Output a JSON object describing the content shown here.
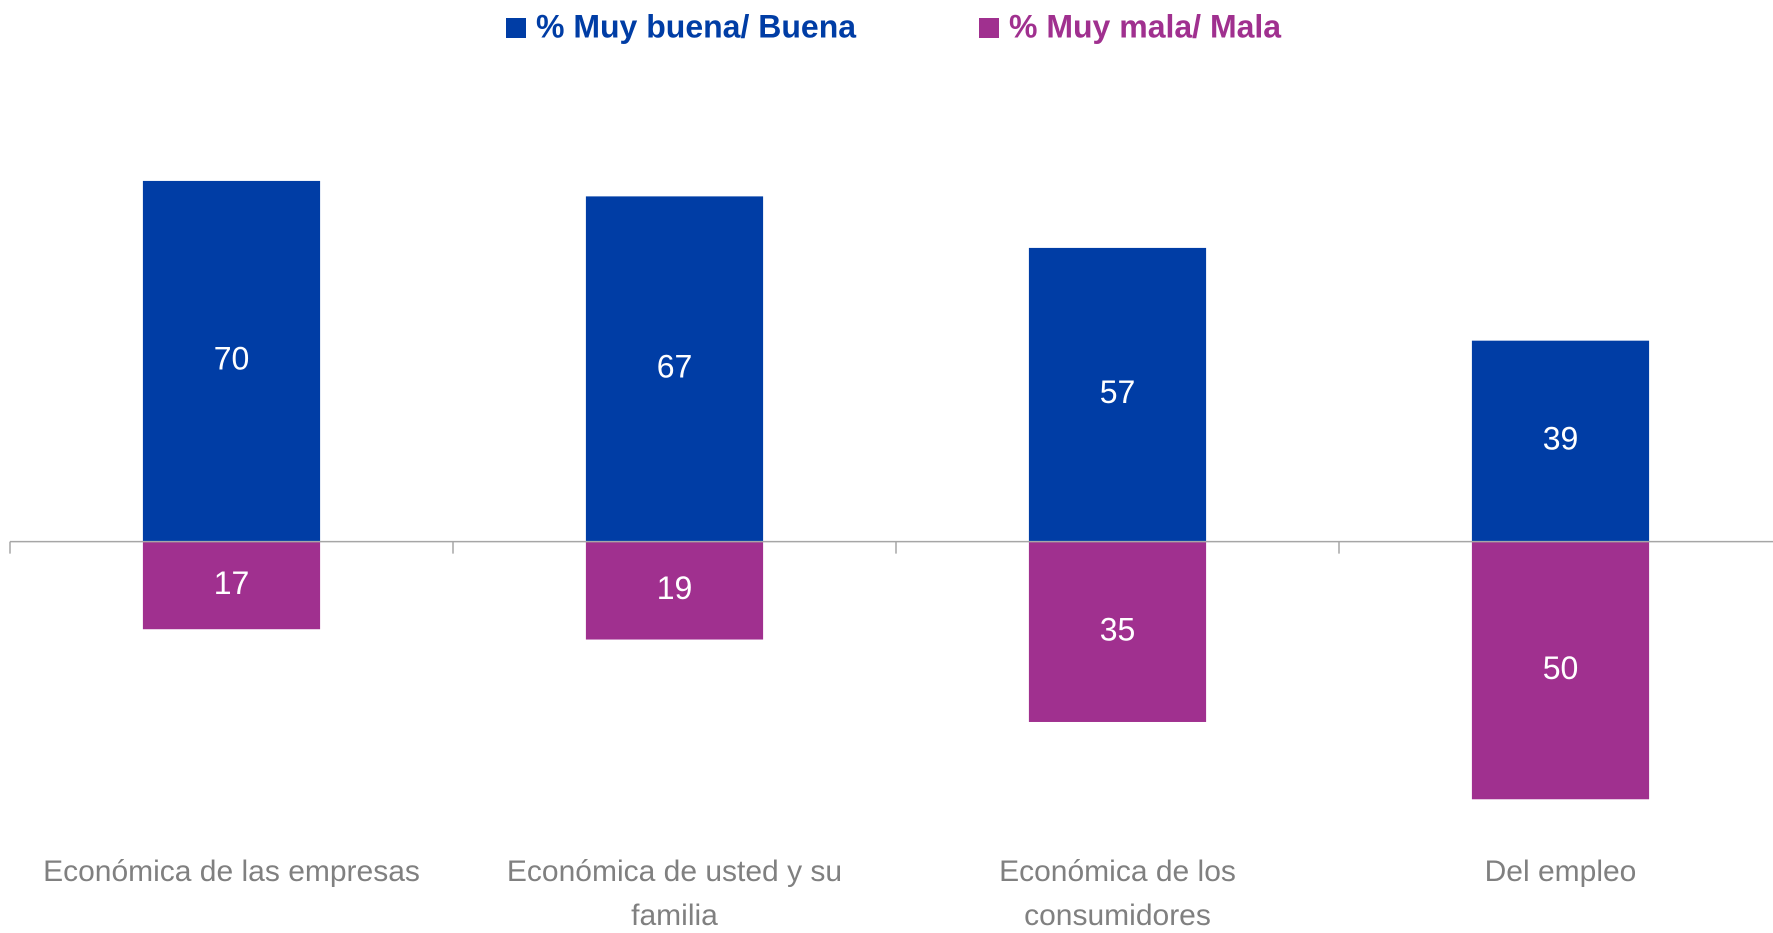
{
  "chart_data": {
    "type": "bar",
    "categories": [
      "Económica de las empresas",
      "Económica de usted y su familia",
      "Económica de los consumidores",
      "Del empleo"
    ],
    "series": [
      {
        "name": "% Muy buena/ Buena",
        "color": "#003DA5",
        "values": [
          70,
          67,
          57,
          39
        ]
      },
      {
        "name": "% Muy mala/ Mala",
        "color": "#A0308F",
        "values": [
          -17,
          -19,
          -35,
          -50
        ],
        "value_labels": [
          "17",
          "19",
          "35",
          "50"
        ]
      }
    ],
    "ylim": [
      -60,
      80
    ],
    "legend": "top"
  }
}
